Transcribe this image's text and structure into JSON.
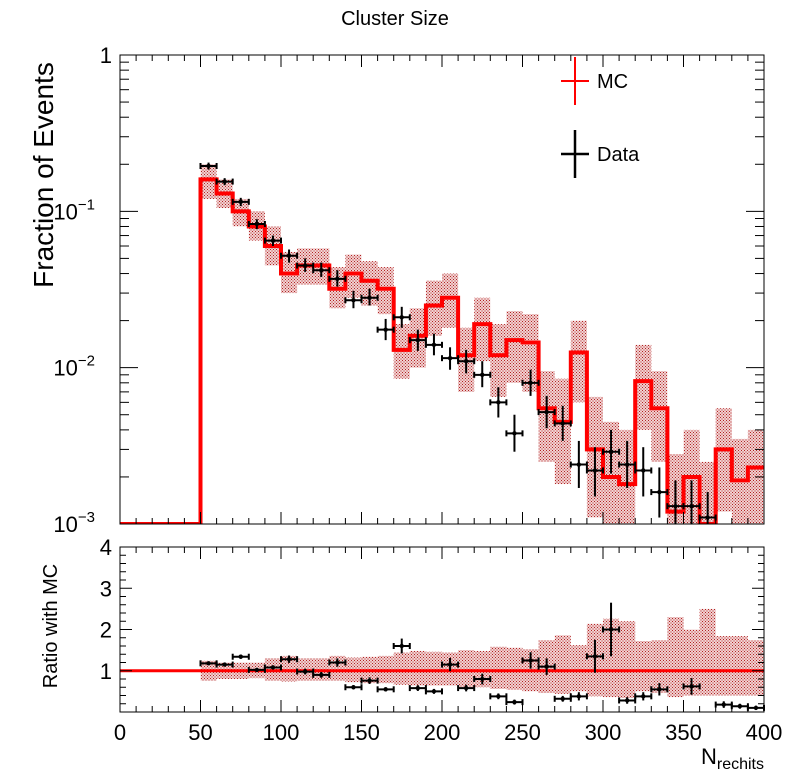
{
  "chart_data": [
    {
      "type": "step",
      "title": "Cluster Size",
      "ylabel": "Fraction of Events",
      "yscale": "log",
      "ylim": [
        0.001,
        1
      ],
      "xlim": [
        0,
        400
      ],
      "yticks": [
        {
          "value": 1,
          "base": "1",
          "exp": ""
        },
        {
          "value": 0.1,
          "base": "10",
          "exp": "−1"
        },
        {
          "value": 0.01,
          "base": "10",
          "exp": "−2"
        },
        {
          "value": 0.001,
          "base": "10",
          "exp": "−3"
        }
      ],
      "bin_width": 10,
      "legend": {
        "position": "top-right",
        "entries": [
          {
            "label": "MC",
            "color": "#ff0000"
          },
          {
            "label": "Data",
            "color": "#000000"
          }
        ]
      },
      "mc": {
        "name": "MC",
        "color": "#ff0000",
        "bin_edges": [
          0,
          10,
          20,
          30,
          40,
          50,
          60,
          70,
          80,
          90,
          100,
          110,
          120,
          130,
          140,
          150,
          160,
          170,
          180,
          190,
          200,
          210,
          220,
          230,
          240,
          250,
          260,
          270,
          280,
          290,
          300,
          310,
          320,
          330,
          340,
          350,
          360,
          370,
          380,
          390,
          400
        ],
        "values": [
          0.001,
          0.001,
          0.001,
          0.001,
          0.001,
          0.16,
          0.13,
          0.1,
          0.08,
          0.06,
          0.04,
          0.045,
          0.045,
          0.032,
          0.04,
          0.036,
          0.032,
          0.013,
          0.016,
          0.025,
          0.028,
          0.012,
          0.019,
          0.012,
          0.015,
          0.0145,
          0.0055,
          0.0045,
          0.0125,
          0.003,
          0.002,
          0.0018,
          0.0082,
          0.0055,
          0.0012,
          0.002,
          0.001,
          0.003,
          0.0019,
          0.0023
        ],
        "band_lower": [
          0.001,
          0.001,
          0.001,
          0.001,
          0.001,
          0.12,
          0.105,
          0.08,
          0.065,
          0.045,
          0.03,
          0.034,
          0.034,
          0.024,
          0.028,
          0.025,
          0.022,
          0.0085,
          0.01,
          0.016,
          0.018,
          0.007,
          0.011,
          0.0065,
          0.008,
          0.007,
          0.0025,
          0.0018,
          0.006,
          0.0011,
          0.001,
          0.001,
          0.004,
          0.0025,
          0.001,
          0.001,
          0.001,
          0.0012,
          0.001,
          0.001
        ],
        "band_upper": [
          0.001,
          0.001,
          0.001,
          0.001,
          0.001,
          0.2,
          0.16,
          0.12,
          0.1,
          0.08,
          0.055,
          0.058,
          0.058,
          0.044,
          0.053,
          0.048,
          0.044,
          0.019,
          0.024,
          0.036,
          0.04,
          0.018,
          0.028,
          0.019,
          0.023,
          0.022,
          0.0095,
          0.0085,
          0.02,
          0.0065,
          0.0045,
          0.004,
          0.014,
          0.0095,
          0.0028,
          0.004,
          0.0025,
          0.0055,
          0.0035,
          0.004
        ]
      },
      "data": {
        "name": "Data",
        "color": "#000000",
        "points": [
          {
            "x": 55,
            "y": 0.195,
            "lo": 0.185,
            "hi": 0.205
          },
          {
            "x": 65,
            "y": 0.155,
            "lo": 0.147,
            "hi": 0.163
          },
          {
            "x": 75,
            "y": 0.115,
            "lo": 0.108,
            "hi": 0.122
          },
          {
            "x": 85,
            "y": 0.083,
            "lo": 0.077,
            "hi": 0.089
          },
          {
            "x": 95,
            "y": 0.065,
            "lo": 0.06,
            "hi": 0.07
          },
          {
            "x": 105,
            "y": 0.052,
            "lo": 0.047,
            "hi": 0.057
          },
          {
            "x": 115,
            "y": 0.045,
            "lo": 0.041,
            "hi": 0.05
          },
          {
            "x": 125,
            "y": 0.042,
            "lo": 0.038,
            "hi": 0.047
          },
          {
            "x": 135,
            "y": 0.037,
            "lo": 0.033,
            "hi": 0.042
          },
          {
            "x": 145,
            "y": 0.027,
            "lo": 0.024,
            "hi": 0.031
          },
          {
            "x": 155,
            "y": 0.028,
            "lo": 0.025,
            "hi": 0.032
          },
          {
            "x": 165,
            "y": 0.0175,
            "lo": 0.015,
            "hi": 0.0205
          },
          {
            "x": 175,
            "y": 0.021,
            "lo": 0.018,
            "hi": 0.0245
          },
          {
            "x": 185,
            "y": 0.015,
            "lo": 0.0128,
            "hi": 0.0175
          },
          {
            "x": 195,
            "y": 0.014,
            "lo": 0.012,
            "hi": 0.0165
          },
          {
            "x": 205,
            "y": 0.0115,
            "lo": 0.0097,
            "hi": 0.0135
          },
          {
            "x": 215,
            "y": 0.011,
            "lo": 0.0092,
            "hi": 0.013
          },
          {
            "x": 225,
            "y": 0.009,
            "lo": 0.0075,
            "hi": 0.011
          },
          {
            "x": 235,
            "y": 0.006,
            "lo": 0.0048,
            "hi": 0.0075
          },
          {
            "x": 245,
            "y": 0.0038,
            "lo": 0.0029,
            "hi": 0.005
          },
          {
            "x": 255,
            "y": 0.008,
            "lo": 0.0066,
            "hi": 0.0097
          },
          {
            "x": 265,
            "y": 0.0052,
            "lo": 0.0041,
            "hi": 0.0066
          },
          {
            "x": 275,
            "y": 0.0044,
            "lo": 0.0034,
            "hi": 0.0057
          },
          {
            "x": 285,
            "y": 0.0024,
            "lo": 0.0017,
            "hi": 0.0034
          },
          {
            "x": 295,
            "y": 0.0022,
            "lo": 0.0015,
            "hi": 0.0031
          },
          {
            "x": 305,
            "y": 0.0029,
            "lo": 0.0021,
            "hi": 0.004
          },
          {
            "x": 315,
            "y": 0.0024,
            "lo": 0.0017,
            "hi": 0.0034
          },
          {
            "x": 325,
            "y": 0.0022,
            "lo": 0.0015,
            "hi": 0.0031
          },
          {
            "x": 335,
            "y": 0.0016,
            "lo": 0.0011,
            "hi": 0.0023
          },
          {
            "x": 345,
            "y": 0.0013,
            "lo": 0.001,
            "hi": 0.0019
          },
          {
            "x": 355,
            "y": 0.0013,
            "lo": 0.001,
            "hi": 0.0019
          },
          {
            "x": 365,
            "y": 0.0011,
            "lo": 0.001,
            "hi": 0.0016
          }
        ]
      }
    },
    {
      "type": "scatter",
      "ylabel": "Ratio with MC",
      "xlabel_base": "N",
      "xlabel_sub": "rechits",
      "xlim": [
        0,
        400
      ],
      "ylim": [
        0,
        4
      ],
      "xticks": [
        0,
        50,
        100,
        150,
        200,
        250,
        300,
        350,
        400
      ],
      "yticks": [
        1,
        2,
        3,
        4
      ],
      "reference_line": 1,
      "band": {
        "color": "#c0392b",
        "lower": [
          1,
          1,
          1,
          1,
          1,
          0.76,
          0.8,
          0.8,
          0.82,
          0.76,
          0.74,
          0.76,
          0.76,
          0.76,
          0.72,
          0.7,
          0.7,
          0.66,
          0.64,
          0.64,
          0.64,
          0.6,
          0.6,
          0.56,
          0.54,
          0.5,
          0.46,
          0.44,
          0.5,
          0.38,
          0.36,
          0.34,
          0.5,
          0.46,
          0.36,
          0.4,
          0.4,
          0.4,
          0.4,
          0.4
        ],
        "upper": [
          1,
          1,
          1,
          1,
          1,
          1.24,
          1.2,
          1.2,
          1.2,
          1.3,
          1.36,
          1.3,
          1.3,
          1.36,
          1.32,
          1.34,
          1.36,
          1.44,
          1.48,
          1.46,
          1.44,
          1.5,
          1.48,
          1.58,
          1.56,
          1.52,
          1.74,
          1.86,
          1.62,
          2.14,
          2.26,
          2.2,
          1.72,
          1.74,
          2.3,
          2.0,
          2.5,
          1.84,
          1.84,
          1.74
        ]
      },
      "points": [
        {
          "x": 55,
          "y": 1.18,
          "lo": 1.15,
          "hi": 1.21
        },
        {
          "x": 65,
          "y": 1.15,
          "lo": 1.12,
          "hi": 1.18
        },
        {
          "x": 75,
          "y": 1.34,
          "lo": 1.29,
          "hi": 1.39
        },
        {
          "x": 85,
          "y": 1.02,
          "lo": 0.98,
          "hi": 1.06
        },
        {
          "x": 95,
          "y": 1.08,
          "lo": 1.03,
          "hi": 1.13
        },
        {
          "x": 105,
          "y": 1.28,
          "lo": 1.19,
          "hi": 1.37
        },
        {
          "x": 115,
          "y": 0.98,
          "lo": 0.91,
          "hi": 1.05
        },
        {
          "x": 125,
          "y": 0.9,
          "lo": 0.83,
          "hi": 0.97
        },
        {
          "x": 135,
          "y": 1.2,
          "lo": 1.1,
          "hi": 1.3
        },
        {
          "x": 145,
          "y": 0.6,
          "lo": 0.55,
          "hi": 0.65
        },
        {
          "x": 155,
          "y": 0.76,
          "lo": 0.68,
          "hi": 0.84
        },
        {
          "x": 165,
          "y": 0.55,
          "lo": 0.5,
          "hi": 0.6
        },
        {
          "x": 175,
          "y": 1.6,
          "lo": 1.42,
          "hi": 1.78
        },
        {
          "x": 185,
          "y": 0.58,
          "lo": 0.51,
          "hi": 0.65
        },
        {
          "x": 195,
          "y": 0.5,
          "lo": 0.44,
          "hi": 0.56
        },
        {
          "x": 205,
          "y": 1.15,
          "lo": 0.99,
          "hi": 1.31
        },
        {
          "x": 215,
          "y": 0.58,
          "lo": 0.5,
          "hi": 0.66
        },
        {
          "x": 225,
          "y": 0.8,
          "lo": 0.67,
          "hi": 0.93
        },
        {
          "x": 235,
          "y": 0.38,
          "lo": 0.31,
          "hi": 0.45
        },
        {
          "x": 245,
          "y": 0.24,
          "lo": 0.18,
          "hi": 0.3
        },
        {
          "x": 255,
          "y": 1.25,
          "lo": 1.05,
          "hi": 1.45
        },
        {
          "x": 265,
          "y": 1.1,
          "lo": 0.9,
          "hi": 1.3
        },
        {
          "x": 275,
          "y": 0.32,
          "lo": 0.25,
          "hi": 0.39
        },
        {
          "x": 285,
          "y": 0.38,
          "lo": 0.28,
          "hi": 0.48
        },
        {
          "x": 295,
          "y": 1.35,
          "lo": 0.95,
          "hi": 1.75
        },
        {
          "x": 305,
          "y": 2.0,
          "lo": 1.35,
          "hi": 2.65
        },
        {
          "x": 315,
          "y": 0.28,
          "lo": 0.2,
          "hi": 0.36
        },
        {
          "x": 325,
          "y": 0.38,
          "lo": 0.28,
          "hi": 0.48
        },
        {
          "x": 335,
          "y": 0.55,
          "lo": 0.4,
          "hi": 0.7
        },
        {
          "x": 355,
          "y": 0.62,
          "lo": 0.42,
          "hi": 0.82
        },
        {
          "x": 375,
          "y": 0.18,
          "lo": 0.1,
          "hi": 0.26
        },
        {
          "x": 385,
          "y": 0.14,
          "lo": 0.08,
          "hi": 0.2
        },
        {
          "x": 395,
          "y": 0.1,
          "lo": 0.05,
          "hi": 0.15
        }
      ]
    }
  ]
}
